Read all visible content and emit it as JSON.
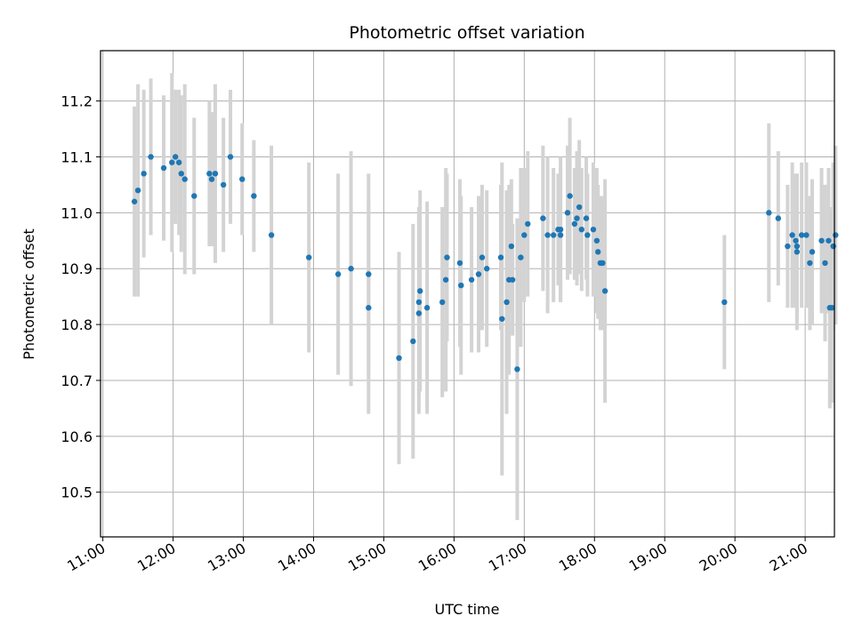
{
  "chart_data": {
    "type": "scatter",
    "title": "Photometric offset variation",
    "xlabel": "UTC time",
    "ylabel": "Photometric offset",
    "x_ticks": [
      "11:00",
      "12:00",
      "13:00",
      "14:00",
      "15:00",
      "16:00",
      "17:00",
      "18:00",
      "19:00",
      "20:00",
      "21:00"
    ],
    "xlim": [
      "10:58",
      "21:25"
    ],
    "y_ticks": [
      "10.5",
      "10.6",
      "10.7",
      "10.8",
      "10.9",
      "11.0",
      "11.1",
      "11.2"
    ],
    "ylim": [
      10.42,
      11.29
    ],
    "grid": true,
    "colors": {
      "point": "#1f77b4",
      "error_bar": "#d3d3d3",
      "grid": "#b0b0b0"
    },
    "series": [
      {
        "x": [
          "11:27",
          "11:30",
          "11:35",
          "11:41",
          "11:52",
          "11:59",
          "12:02",
          "12:05",
          "12:07",
          "12:10",
          "12:18",
          "12:31",
          "12:33",
          "12:36",
          "12:43",
          "12:49",
          "12:59",
          "13:09",
          "13:24",
          "13:56",
          "14:21",
          "14:32",
          "14:47",
          "14:47",
          "15:13",
          "15:25",
          "15:30",
          "15:30",
          "15:31",
          "15:37",
          "15:50",
          "15:53",
          "15:54",
          "16:05",
          "16:06",
          "16:15",
          "16:21",
          "16:24",
          "16:28",
          "16:40",
          "16:41",
          "16:45",
          "16:47",
          "16:49",
          "16:50",
          "16:54",
          "16:57",
          "17:00",
          "17:03",
          "17:16",
          "17:20",
          "17:25",
          "17:29",
          "17:31",
          "17:31",
          "17:37",
          "17:39",
          "17:43",
          "17:45",
          "17:47",
          "17:49",
          "17:53",
          "17:54",
          "17:59",
          "18:02",
          "18:03",
          "18:05",
          "18:06",
          "18:07",
          "18:09",
          "19:51",
          "20:29",
          "20:37",
          "20:45",
          "20:49",
          "20:52",
          "20:53",
          "20:53",
          "20:57",
          "21:01",
          "21:04",
          "21:06",
          "21:14",
          "21:17",
          "21:20",
          "21:21",
          "21:23",
          "21:24",
          "21:26"
        ],
        "y": [
          11.02,
          11.04,
          11.07,
          11.1,
          11.08,
          11.09,
          11.1,
          11.09,
          11.07,
          11.06,
          11.03,
          11.07,
          11.06,
          11.07,
          11.05,
          11.1,
          11.06,
          11.03,
          10.96,
          10.92,
          10.89,
          10.9,
          10.89,
          10.83,
          10.74,
          10.77,
          10.82,
          10.84,
          10.86,
          10.83,
          10.84,
          10.88,
          10.92,
          10.91,
          10.87,
          10.88,
          10.89,
          10.92,
          10.9,
          10.92,
          10.81,
          10.84,
          10.88,
          10.94,
          10.88,
          10.72,
          10.92,
          10.96,
          10.98,
          10.99,
          10.96,
          10.96,
          10.97,
          10.96,
          10.97,
          11.0,
          11.03,
          10.98,
          10.99,
          11.01,
          10.97,
          10.99,
          10.96,
          10.97,
          10.95,
          10.93,
          10.91,
          10.91,
          10.91,
          10.86,
          10.84,
          11.0,
          10.99,
          10.94,
          10.96,
          10.95,
          10.93,
          10.94,
          10.96,
          10.96,
          10.91,
          10.93,
          10.95,
          10.91,
          10.95,
          10.83,
          10.83,
          10.94,
          10.96
        ],
        "yerr": [
          0.17,
          0.19,
          0.15,
          0.14,
          0.13,
          0.16,
          0.12,
          0.13,
          0.14,
          0.17,
          0.14,
          0.13,
          0.12,
          0.16,
          0.12,
          0.12,
          0.1,
          0.1,
          0.16,
          0.17,
          0.18,
          0.21,
          0.18,
          0.19,
          0.19,
          0.21,
          0.18,
          0.17,
          0.18,
          0.19,
          0.17,
          0.2,
          0.15,
          0.15,
          0.16,
          0.13,
          0.14,
          0.13,
          0.14,
          0.13,
          0.28,
          0.2,
          0.17,
          0.12,
          0.1,
          0.27,
          0.16,
          0.12,
          0.13,
          0.13,
          0.14,
          0.12,
          0.1,
          0.12,
          0.13,
          0.12,
          0.14,
          0.1,
          0.12,
          0.12,
          0.11,
          0.11,
          0.11,
          0.12,
          0.13,
          0.12,
          0.12,
          0.12,
          0.12,
          0.2,
          0.12,
          0.16,
          0.12,
          0.11,
          0.13,
          0.12,
          0.14,
          0.13,
          0.13,
          0.13,
          0.12,
          0.13,
          0.13,
          0.14,
          0.13,
          0.18,
          0.17,
          0.15,
          0.16
        ]
      }
    ]
  }
}
